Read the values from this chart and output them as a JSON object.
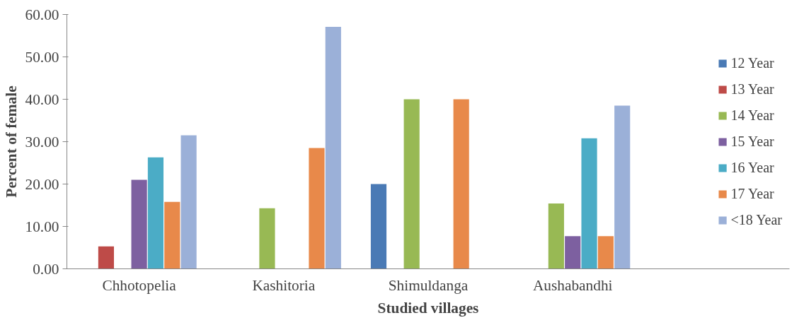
{
  "chart_data": {
    "type": "bar",
    "xlabel": "Studied villages",
    "ylabel": "Percent of female",
    "categories": [
      "Chhotopelia",
      "Kashitoria",
      "Shimuldanga",
      "Aushabandhi"
    ],
    "series": [
      {
        "name": "12 Year",
        "color": "#4a7ab5",
        "values": [
          0,
          0,
          20.0,
          0
        ]
      },
      {
        "name": "13 Year",
        "color": "#be4b48",
        "values": [
          5.3,
          0,
          0,
          0
        ]
      },
      {
        "name": "14 Year",
        "color": "#98b954",
        "values": [
          0,
          14.3,
          40.0,
          15.4
        ]
      },
      {
        "name": "15 Year",
        "color": "#7d60a0",
        "values": [
          21.0,
          0,
          0,
          7.7
        ]
      },
      {
        "name": "16 Year",
        "color": "#4bacc6",
        "values": [
          26.3,
          0,
          0,
          30.8
        ]
      },
      {
        "name": "17 Year",
        "color": "#e8894a",
        "values": [
          15.8,
          28.5,
          40.0,
          7.7
        ]
      },
      {
        "name": "<18 Year",
        "color": "#9bb0d8",
        "values": [
          31.5,
          57.1,
          0,
          38.5
        ]
      }
    ],
    "ylim": [
      0,
      60
    ],
    "yticks": [
      {
        "value": 0,
        "label": "0.00"
      },
      {
        "value": 10,
        "label": "10.00"
      },
      {
        "value": 20,
        "label": "20.00"
      },
      {
        "value": 30,
        "label": "30.00"
      },
      {
        "value": 40,
        "label": "40.00"
      },
      {
        "value": 50,
        "label": "50.00"
      },
      {
        "value": 60,
        "label": "60.00"
      }
    ],
    "grid": false,
    "legend": "right"
  }
}
